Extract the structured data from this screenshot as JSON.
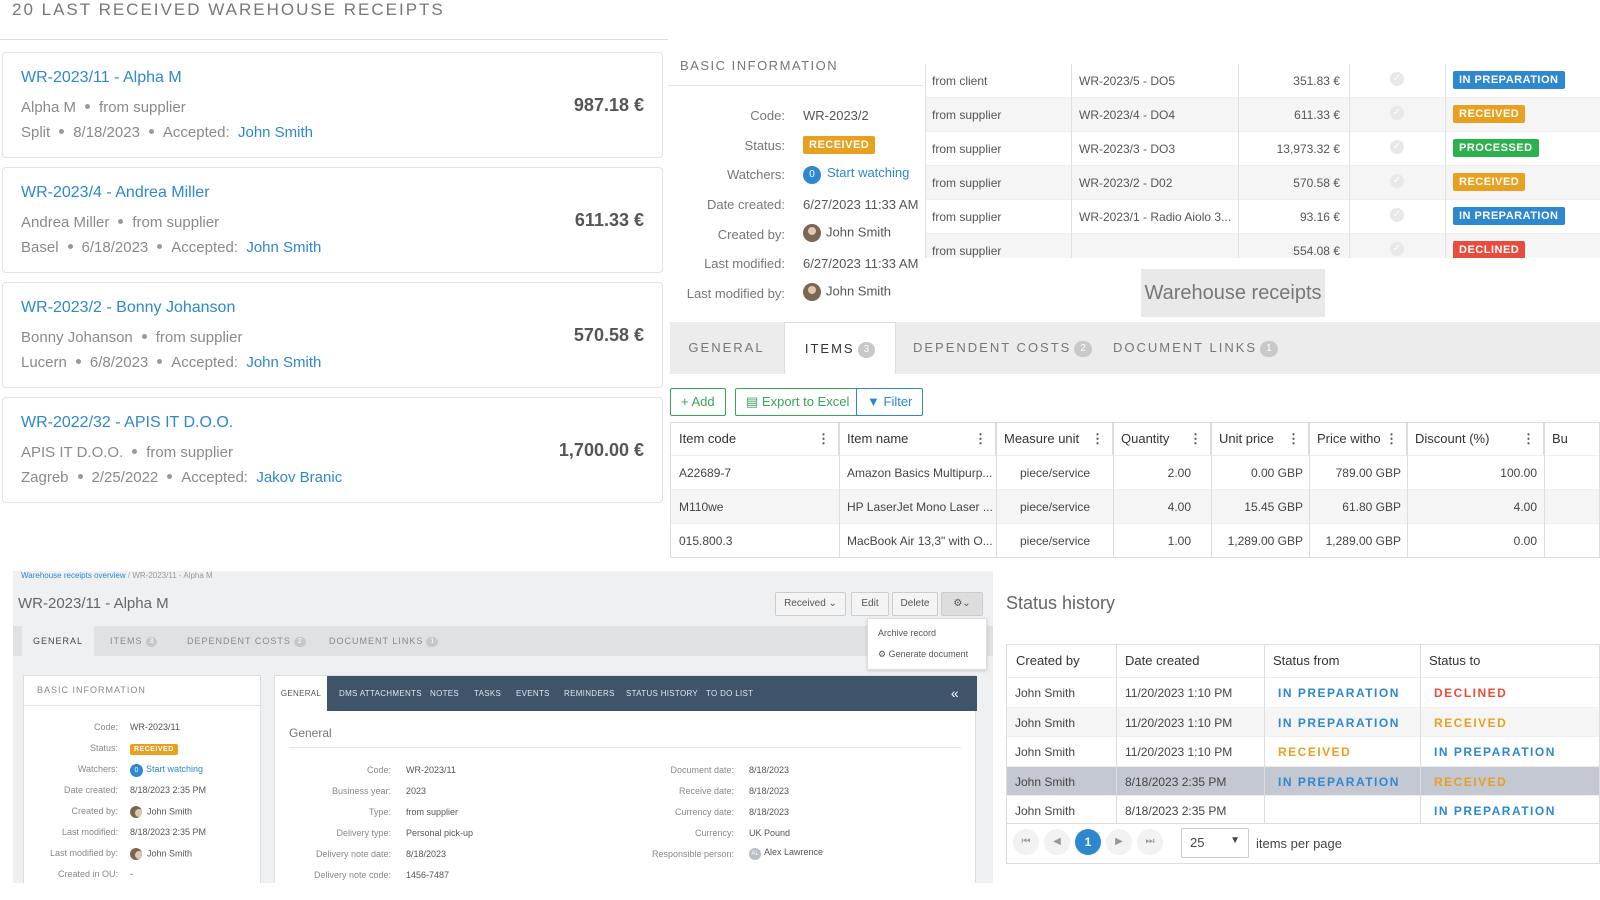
{
  "receipts_panel": {
    "title": "20 LAST RECEIVED WAREHOUSE RECEIPTS",
    "cards": [
      {
        "title": "WR-2023/11 - Alpha M",
        "partner": "Alpha M",
        "type": "from supplier",
        "city": "Split",
        "date": "8/18/2023",
        "accepted_label": "Accepted:",
        "accepted_by": "John Smith",
        "amount": "987.18 €"
      },
      {
        "title": "WR-2023/4 - Andrea Miller",
        "partner": "Andrea Miller",
        "type": "from supplier",
        "city": "Basel",
        "date": "6/18/2023",
        "accepted_label": "Accepted:",
        "accepted_by": "John Smith",
        "amount": "611.33 €"
      },
      {
        "title": "WR-2023/2 - Bonny Johanson",
        "partner": "Bonny Johanson",
        "type": "from supplier",
        "city": "Lucern",
        "date": "6/8/2023",
        "accepted_label": "Accepted:",
        "accepted_by": "John Smith",
        "amount": "570.58 €"
      },
      {
        "title": "WR-2022/32 - APIS IT D.O.O.",
        "partner": "APIS IT D.O.O.",
        "type": "from supplier",
        "city": "Zagreb",
        "date": "2/25/2022",
        "accepted_label": "Accepted:",
        "accepted_by": "Jakov Branic",
        "amount": "1,700.00 €"
      }
    ]
  },
  "basic_info": {
    "title": "BASIC INFORMATION",
    "code_label": "Code:",
    "code": "WR-2023/2",
    "status_label": "Status:",
    "status": "RECEIVED",
    "watchers_label": "Watchers:",
    "watchers_count": "0",
    "watch_link": "Start watching",
    "date_created_label": "Date created:",
    "date_created": "6/27/2023 11:33 AM",
    "created_by_label": "Created by:",
    "created_by": "John Smith",
    "last_modified_label": "Last modified:",
    "last_modified": "6/27/2023 11:33 AM",
    "last_modified_by_label": "Last modified by:",
    "last_modified_by": "John Smith"
  },
  "receipts_table": {
    "rows": [
      {
        "type": "from client",
        "doc": "WR-2023/5 - DO5",
        "amount": "351.83 €",
        "status": "IN PREPARATION",
        "status_color": "#2e88d0"
      },
      {
        "type": "from supplier",
        "doc": "WR-2023/4 - DO4",
        "amount": "611.33 €",
        "status": "RECEIVED",
        "status_color": "#e8a020"
      },
      {
        "type": "from supplier",
        "doc": "WR-2023/3 - DO3",
        "amount": "13,973.32 €",
        "status": "PROCESSED",
        "status_color": "#2bb24c"
      },
      {
        "type": "from supplier",
        "doc": "WR-2023/2 - D02",
        "amount": "570.58 €",
        "status": "RECEIVED",
        "status_color": "#e8a020"
      },
      {
        "type": "from supplier",
        "doc": "WR-2023/1 - Radio Aiolo 3...",
        "amount": "93.16 €",
        "status": "IN PREPARATION",
        "status_color": "#2e88d0"
      },
      {
        "type": "from supplier",
        "doc": "",
        "amount": "554.08 €",
        "status": "DECLINED",
        "status_color": "#e84c3d"
      }
    ]
  },
  "floating_title": "Warehouse receipts",
  "tabs": [
    {
      "label": "GENERAL",
      "count": ""
    },
    {
      "label": "ITEMS",
      "count": "3"
    },
    {
      "label": "DEPENDENT COSTS",
      "count": "2"
    },
    {
      "label": "DOCUMENT LINKS",
      "count": "1"
    }
  ],
  "toolbar": {
    "add": "Add",
    "export": "Export to Excel",
    "filter": "Filter"
  },
  "items_grid": {
    "columns": [
      "Item code",
      "Item name",
      "Measure unit",
      "Quantity",
      "Unit price",
      "Price witho",
      "Discount (%)",
      "Bu"
    ],
    "rows": [
      [
        "A22689-7",
        "Amazon Basics Multipurp...",
        "piece/service",
        "2.00",
        "0.00 GBP",
        "789.00 GBP",
        "100.00"
      ],
      [
        "M110we",
        "HP LaserJet Mono Laser ...",
        "piece/service",
        "4.00",
        "15.45 GBP",
        "61.80 GBP",
        "4.00"
      ],
      [
        "015.800.3",
        "MacBook Air 13,3\" with O...",
        "piece/service",
        "1.00",
        "1,289.00 GBP",
        "1,289.00 GBP",
        "0.00"
      ]
    ]
  },
  "detail": {
    "breadcrumb_root": "Warehouse receipts overview",
    "breadcrumb_sep": "/",
    "breadcrumb_current": "WR-2023/11 - Alpha M",
    "title": "WR-2023/11 - Alpha M",
    "status_select": "Received",
    "edit": "Edit",
    "delete": "Delete",
    "menu": [
      "Archive record",
      "Generate document"
    ],
    "tabs": [
      {
        "label": "GENERAL",
        "count": ""
      },
      {
        "label": "ITEMS",
        "count": "3"
      },
      {
        "label": "DEPENDENT COSTS",
        "count": "2"
      },
      {
        "label": "DOCUMENT LINKS",
        "count": "1"
      }
    ],
    "basic": {
      "title": "BASIC INFORMATION",
      "rows": [
        {
          "k": "Code:",
          "v": "WR-2023/11"
        },
        {
          "k": "Status:",
          "v": "RECEIVED"
        },
        {
          "k": "Watchers:",
          "v": "Start watching"
        },
        {
          "k": "Date created:",
          "v": "8/18/2023 2:35 PM"
        },
        {
          "k": "Created by:",
          "v": "John Smith"
        },
        {
          "k": "Last modified:",
          "v": "8/18/2023 2:35 PM"
        },
        {
          "k": "Last modified by:",
          "v": "John Smith"
        },
        {
          "k": "Created in OU:",
          "v": "-"
        }
      ],
      "watchers_count": "0"
    },
    "inner_tabs": [
      "GENERAL",
      "DMS ATTACHMENTS",
      "NOTES",
      "TASKS",
      "EVENTS",
      "REMINDERS",
      "STATUS HISTORY",
      "TO DO LIST"
    ],
    "general_title": "General",
    "left_fields": [
      {
        "k": "Code:",
        "v": "WR-2023/11"
      },
      {
        "k": "Business year:",
        "v": "2023"
      },
      {
        "k": "Type:",
        "v": "from supplier"
      },
      {
        "k": "Delivery type:",
        "v": "Personal pick-up"
      },
      {
        "k": "Delivery note date:",
        "v": "8/18/2023"
      },
      {
        "k": "Delivery note code:",
        "v": "1456-7487"
      }
    ],
    "right_fields": [
      {
        "k": "Document date:",
        "v": "8/18/2023"
      },
      {
        "k": "Receive date:",
        "v": "8/18/2023"
      },
      {
        "k": "Currency date:",
        "v": "8/18/2023"
      },
      {
        "k": "Currency:",
        "v": "UK Pound"
      },
      {
        "k": "Responsible person:",
        "v": "Alex Lawrence"
      }
    ],
    "responsible_initials": "AL"
  },
  "status_history": {
    "title": "Status history",
    "columns": [
      "Created by",
      "Date created",
      "Status from",
      "Status to"
    ],
    "rows": [
      {
        "by": "John Smith",
        "date": "11/20/2023 1:10 PM",
        "from": "IN PREPARATION",
        "from_color": "#2e88d0",
        "to": "DECLINED",
        "to_color": "#e84c3d"
      },
      {
        "by": "John Smith",
        "date": "11/20/2023 1:10 PM",
        "from": "IN PREPARATION",
        "from_color": "#2e88d0",
        "to": "RECEIVED",
        "to_color": "#e8a020"
      },
      {
        "by": "John Smith",
        "date": "11/20/2023 1:10 PM",
        "from": "RECEIVED",
        "from_color": "#e8a020",
        "to": "IN PREPARATION",
        "to_color": "#2e88d0"
      },
      {
        "by": "John Smith",
        "date": "8/18/2023 2:35 PM",
        "from": "IN PREPARATION",
        "from_color": "#2e88d0",
        "to": "RECEIVED",
        "to_color": "#e8a020"
      },
      {
        "by": "John Smith",
        "date": "8/18/2023 2:35 PM",
        "from": "",
        "from_color": "#2e88d0",
        "to": "IN PREPARATION",
        "to_color": "#2e88d0"
      }
    ],
    "current_page": "1",
    "page_size": "25",
    "per_page_label": "items per page"
  }
}
